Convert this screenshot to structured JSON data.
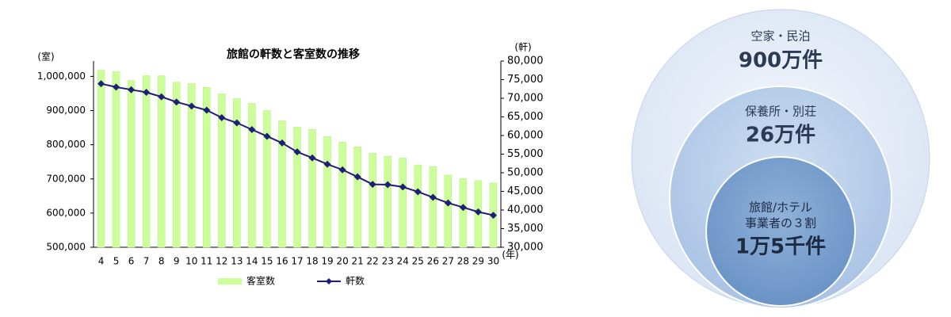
{
  "chart_data": {
    "type": "bar",
    "title": "旅館の軒数と客室数の推移",
    "y_label": "(室)",
    "y2_label": "(軒)",
    "x_label": "(年)",
    "categories": [
      "4",
      "5",
      "6",
      "7",
      "8",
      "9",
      "10",
      "11",
      "12",
      "13",
      "14",
      "15",
      "16",
      "17",
      "18",
      "19",
      "20",
      "21",
      "22",
      "23",
      "24",
      "25",
      "26",
      "27",
      "28",
      "29",
      "30"
    ],
    "series": [
      {
        "name": "客室数",
        "type": "bar",
        "color": "#ccff99",
        "values": [
          1018000,
          1014000,
          988000,
          1002000,
          1002000,
          983000,
          979000,
          968000,
          949000,
          935000,
          921000,
          900000,
          870000,
          852000,
          845000,
          824000,
          808000,
          794000,
          775000,
          766000,
          761000,
          741000,
          736000,
          711000,
          701000,
          695000,
          688000
        ]
      },
      {
        "name": "軒数",
        "type": "line",
        "axis": "y2",
        "color": "#1f1f7a",
        "values": [
          73900,
          73000,
          72300,
          71600,
          70400,
          69000,
          67900,
          66800,
          64800,
          63400,
          61600,
          59800,
          58000,
          55600,
          54000,
          52300,
          50800,
          48900,
          46900,
          46800,
          46200,
          44900,
          43400,
          41900,
          40700,
          39500,
          38600
        ]
      }
    ],
    "ylim": [
      500000,
      1045000
    ],
    "yticks": [
      {
        "value": 500000,
        "label": "500,000"
      },
      {
        "value": 600000,
        "label": "600,000"
      },
      {
        "value": 700000,
        "label": "700,000"
      },
      {
        "value": 800000,
        "label": "800,000"
      },
      {
        "value": 900000,
        "label": "900,000"
      },
      {
        "value": 1000000,
        "label": "1,000,000"
      }
    ],
    "y2lim": [
      30000,
      80000
    ],
    "y2ticks": [
      {
        "value": 30000,
        "label": "30,000"
      },
      {
        "value": 35000,
        "label": "35,000"
      },
      {
        "value": 40000,
        "label": "40,000"
      },
      {
        "value": 45000,
        "label": "45,000"
      },
      {
        "value": 50000,
        "label": "50,000"
      },
      {
        "value": 55000,
        "label": "55,000"
      },
      {
        "value": 60000,
        "label": "60,000"
      },
      {
        "value": 65000,
        "label": "65,000"
      },
      {
        "value": 70000,
        "label": "70,000"
      },
      {
        "value": 75000,
        "label": "75,000"
      },
      {
        "value": 80000,
        "label": "80,000"
      }
    ],
    "grid": false,
    "legend": "bottom"
  },
  "diagram": {
    "circles": [
      {
        "lines": [
          "空家・民泊"
        ],
        "value": "900万件"
      },
      {
        "lines": [
          "保養所・別荘"
        ],
        "value": "26万件"
      },
      {
        "lines": [
          "旅館/ホテル",
          "事業者の３割"
        ],
        "value": "1万5千件"
      }
    ]
  }
}
